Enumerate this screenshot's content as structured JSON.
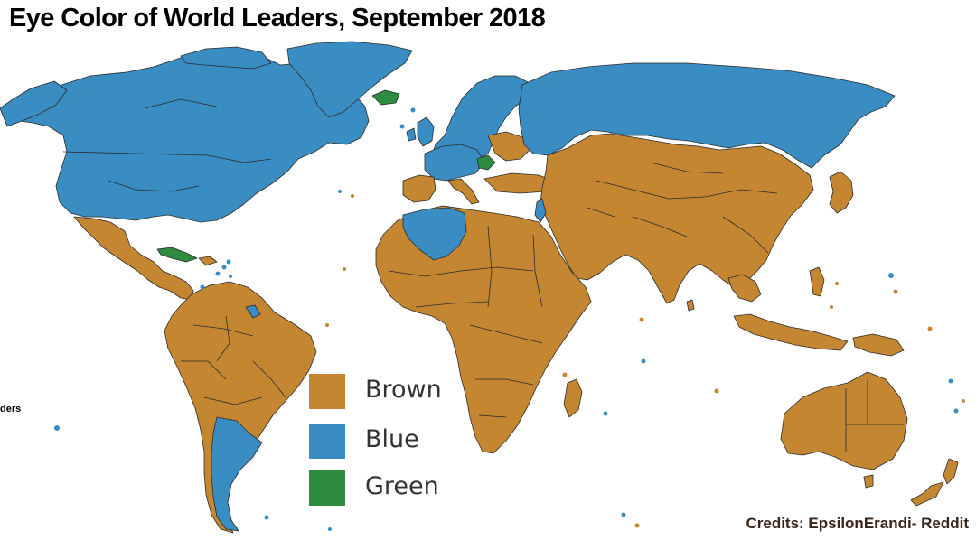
{
  "title": "Eye Color of World Leaders, September 2018",
  "cut_label": "ders",
  "credits": "Credits: EpsilonErandi- Reddit",
  "colors": {
    "brown": "#C48631",
    "blue": "#3A8DC3",
    "green": "#2E8B3F",
    "border": "#2b2b2b",
    "background": "#FFFFFF"
  },
  "legend": [
    {
      "label": "Brown",
      "color": "#C48631"
    },
    {
      "label": "Blue",
      "color": "#3A8DC3"
    },
    {
      "label": "Green",
      "color": "#2E8B3F"
    }
  ],
  "regions": [
    {
      "name": "north-america-canada-usa",
      "color": "blue"
    },
    {
      "name": "greenland",
      "color": "blue"
    },
    {
      "name": "alaska",
      "color": "blue"
    },
    {
      "name": "mexico-central-america",
      "color": "brown"
    },
    {
      "name": "south-america",
      "color": "brown"
    },
    {
      "name": "argentina",
      "color": "blue"
    },
    {
      "name": "cuba",
      "color": "green"
    },
    {
      "name": "iceland",
      "color": "green"
    },
    {
      "name": "europe-north",
      "color": "blue"
    },
    {
      "name": "europe-south",
      "color": "brown"
    },
    {
      "name": "russia",
      "color": "blue"
    },
    {
      "name": "asia",
      "color": "brown"
    },
    {
      "name": "japan",
      "color": "brown"
    },
    {
      "name": "algeria",
      "color": "blue"
    },
    {
      "name": "israel",
      "color": "blue"
    },
    {
      "name": "africa",
      "color": "brown"
    },
    {
      "name": "madagascar",
      "color": "brown"
    },
    {
      "name": "australia",
      "color": "brown"
    },
    {
      "name": "new-zealand",
      "color": "brown"
    },
    {
      "name": "indonesia-philippines",
      "color": "brown"
    }
  ]
}
